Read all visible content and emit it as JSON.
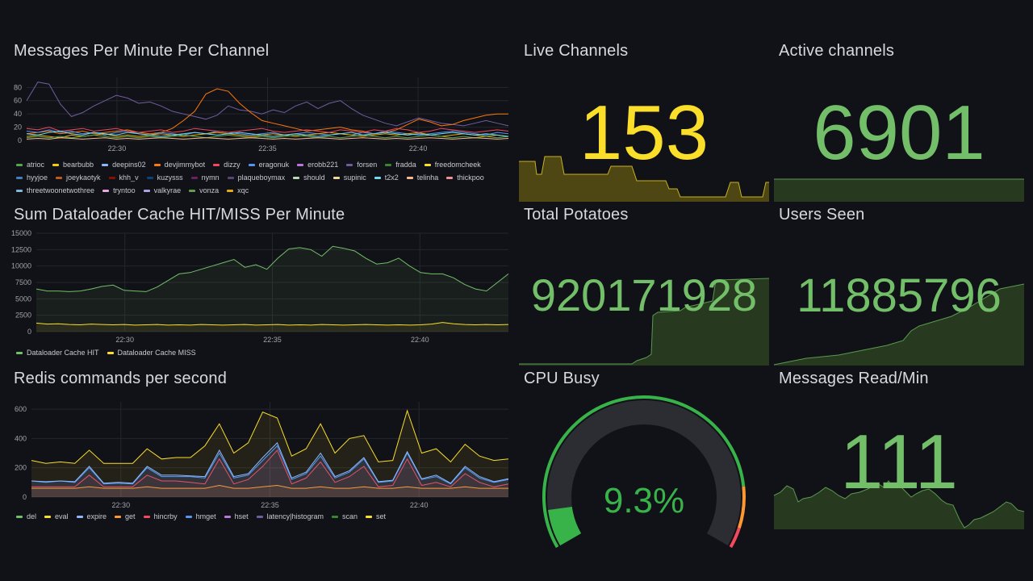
{
  "panels": {
    "messages": {
      "title": "Messages Per Minute Per Channel",
      "legend": [
        {
          "name": "atrioc",
          "color": "#56a64b"
        },
        {
          "name": "bearbubb",
          "color": "#f2cc0c"
        },
        {
          "name": "deepins02",
          "color": "#8ab8ff"
        },
        {
          "name": "devjimmybot",
          "color": "#ff780a"
        },
        {
          "name": "dizzy",
          "color": "#f2495c"
        },
        {
          "name": "eragonuk",
          "color": "#5794f2"
        },
        {
          "name": "erobb221",
          "color": "#b877d9"
        },
        {
          "name": "forsen",
          "color": "#705da0"
        },
        {
          "name": "fradda",
          "color": "#37872d"
        },
        {
          "name": "freedomcheek",
          "color": "#fade2a"
        },
        {
          "name": "hyyjoe",
          "color": "#447ebc"
        },
        {
          "name": "joeykaotyk",
          "color": "#c15c17"
        },
        {
          "name": "khh_v",
          "color": "#890f02"
        },
        {
          "name": "kuzysss",
          "color": "#0a437c"
        },
        {
          "name": "nymn",
          "color": "#6d1f62"
        },
        {
          "name": "plaqueboymax",
          "color": "#584477"
        },
        {
          "name": "should",
          "color": "#b7dbab"
        },
        {
          "name": "supinic",
          "color": "#f4d598"
        },
        {
          "name": "t2x2",
          "color": "#70dbed"
        },
        {
          "name": "telinha",
          "color": "#f9ba8f"
        },
        {
          "name": "thickpoo",
          "color": "#f29191"
        },
        {
          "name": "threetwoonetwothree",
          "color": "#82b5d8"
        },
        {
          "name": "tryntoo",
          "color": "#e5a8e2"
        },
        {
          "name": "valkyrae",
          "color": "#aea2e0"
        },
        {
          "name": "vonza",
          "color": "#629e51"
        },
        {
          "name": "xqc",
          "color": "#e5ac0e"
        }
      ]
    },
    "cache": {
      "title": "Sum Dataloader Cache HIT/MISS Per Minute",
      "legend": [
        {
          "name": "Dataloader Cache HIT",
          "color": "#73bf69"
        },
        {
          "name": "Dataloader Cache MISS",
          "color": "#fade2a"
        }
      ]
    },
    "redis": {
      "title": "Redis commands per second",
      "legend": [
        {
          "name": "del",
          "color": "#73bf69"
        },
        {
          "name": "eval",
          "color": "#fade2a"
        },
        {
          "name": "expire",
          "color": "#8ab8ff"
        },
        {
          "name": "get",
          "color": "#ff9830"
        },
        {
          "name": "hincrby",
          "color": "#f2495c"
        },
        {
          "name": "hmget",
          "color": "#5794f2"
        },
        {
          "name": "hset",
          "color": "#b877d9"
        },
        {
          "name": "latency|histogram",
          "color": "#705da0"
        },
        {
          "name": "scan",
          "color": "#37872d"
        },
        {
          "name": "set",
          "color": "#fade2a"
        }
      ]
    },
    "live_channels": {
      "title": "Live Channels",
      "value": "153",
      "color": "#fade2a",
      "spark_fill": "#4f4713",
      "spark_line": "#c9b21e"
    },
    "active_channels": {
      "title": "Active channels",
      "value": "6901",
      "color": "#73bf69",
      "spark_fill": "#27391f",
      "spark_line": "#5a9a4f"
    },
    "total_potatoes": {
      "title": "Total Potatoes",
      "value": "920171928",
      "color": "#73bf69",
      "spark_fill": "#27391f",
      "spark_line": "#5a9a4f"
    },
    "users_seen": {
      "title": "Users Seen",
      "value": "11885796",
      "color": "#73bf69",
      "spark_fill": "#27391f",
      "spark_line": "#5a9a4f"
    },
    "cpu_busy": {
      "title": "CPU Busy",
      "value": "9.3%",
      "percent": 9.3,
      "color": "#37b34a",
      "track": "#2b2d33"
    },
    "messages_read": {
      "title": "Messages Read/Min",
      "value": "111",
      "color": "#73bf69",
      "spark_fill": "#27391f",
      "spark_line": "#5a9a4f"
    }
  },
  "chart_data": [
    {
      "type": "line",
      "title": "Messages Per Minute Per Channel",
      "xlim": [
        "22:27",
        "22:43"
      ],
      "xticks": [
        "22:30",
        "22:35",
        "22:40"
      ],
      "ylim": [
        0,
        95
      ],
      "yticks": [
        0,
        20,
        40,
        60,
        80
      ],
      "series": [
        {
          "name": "forsen",
          "color": "#705da0",
          "values": [
            60,
            88,
            85,
            55,
            36,
            42,
            52,
            60,
            68,
            64,
            56,
            58,
            52,
            44,
            40,
            36,
            32,
            38,
            52,
            46,
            44,
            40,
            46,
            42,
            52,
            58,
            48,
            56,
            60,
            48,
            38,
            32,
            26,
            22,
            28,
            34,
            30,
            26,
            24,
            22,
            26,
            30,
            26,
            22
          ]
        },
        {
          "name": "devjimmybot",
          "color": "#ff780a",
          "values": [
            10,
            12,
            14,
            10,
            12,
            14,
            10,
            12,
            14,
            16,
            12,
            10,
            12,
            18,
            30,
            44,
            70,
            78,
            74,
            56,
            42,
            30,
            26,
            22,
            18,
            14,
            16,
            18,
            20,
            16,
            14,
            10,
            12,
            16,
            24,
            32,
            28,
            22,
            24,
            30,
            34,
            38,
            40,
            40
          ]
        },
        {
          "name": "eragonuk",
          "color": "#5794f2",
          "values": [
            14,
            12,
            16,
            12,
            14,
            10,
            12,
            8,
            12,
            14,
            10,
            8,
            12,
            10,
            8,
            12,
            10,
            14,
            12,
            10,
            8,
            10,
            12,
            8,
            10,
            12,
            10,
            8,
            10,
            8,
            12,
            10,
            14,
            12,
            10,
            8,
            10,
            12,
            14,
            12,
            10,
            8,
            12,
            10
          ]
        },
        {
          "name": "xqc",
          "color": "#e5ac0e",
          "values": [
            6,
            8,
            6,
            4,
            8,
            6,
            8,
            10,
            6,
            8,
            6,
            8,
            10,
            8,
            6,
            8,
            10,
            12,
            10,
            8,
            6,
            8,
            10,
            8,
            6,
            8,
            10,
            12,
            10,
            8,
            6,
            8,
            10,
            8,
            10,
            12,
            8,
            6,
            8,
            10,
            8,
            6,
            8,
            6
          ]
        },
        {
          "name": "atrioc",
          "color": "#56a64b",
          "values": [
            4,
            6,
            4,
            6,
            4,
            6,
            8,
            6,
            4,
            6,
            4,
            6,
            4,
            6,
            8,
            6,
            4,
            6,
            8,
            6,
            4,
            6,
            4,
            6,
            8,
            6,
            4,
            6,
            4,
            6,
            8,
            6,
            4,
            6,
            4,
            6,
            8,
            6,
            4,
            6,
            4,
            6,
            4,
            6
          ]
        },
        {
          "name": "dizzy",
          "color": "#f2495c",
          "values": [
            18,
            16,
            20,
            14,
            16,
            18,
            14,
            16,
            18,
            14,
            12,
            14,
            16,
            12,
            14,
            18,
            16,
            14,
            12,
            14,
            16,
            18,
            14,
            12,
            14,
            16,
            14,
            12,
            16,
            14,
            12,
            16,
            14,
            18,
            16,
            12,
            14,
            18,
            16,
            14,
            12,
            14,
            16,
            14
          ]
        },
        {
          "name": "t2x2",
          "color": "#70dbed",
          "values": [
            10,
            8,
            12,
            14,
            10,
            8,
            12,
            10,
            8,
            12,
            10,
            8,
            6,
            8,
            10,
            12,
            10,
            8,
            10,
            12,
            10,
            8,
            6,
            8,
            10,
            8,
            6,
            8,
            10,
            12,
            8,
            10,
            12,
            10,
            8,
            10,
            8,
            10,
            12,
            10,
            8,
            10,
            8,
            6
          ]
        },
        {
          "name": "telinha",
          "color": "#f9ba8f",
          "values": [
            2,
            3,
            2,
            4,
            3,
            2,
            3,
            4,
            2,
            3,
            2,
            3,
            4,
            3,
            2,
            3,
            4,
            3,
            2,
            3,
            4,
            3,
            2,
            3,
            2,
            3,
            4,
            3,
            2,
            3,
            4,
            3,
            2,
            3,
            2,
            3,
            4,
            3,
            2,
            3,
            4,
            3,
            2,
            3
          ]
        }
      ]
    },
    {
      "type": "area",
      "title": "Sum Dataloader Cache HIT/MISS Per Minute",
      "xlim": [
        "22:27",
        "22:43"
      ],
      "xticks": [
        "22:30",
        "22:35",
        "22:40"
      ],
      "ylim": [
        0,
        15000
      ],
      "yticks": [
        0,
        2500,
        5000,
        7500,
        10000,
        12500,
        15000
      ],
      "series": [
        {
          "name": "Dataloader Cache HIT",
          "color": "#73bf69",
          "values": [
            6500,
            6200,
            6200,
            6100,
            6200,
            6500,
            6900,
            7100,
            6300,
            6200,
            6100,
            6800,
            7800,
            8800,
            9000,
            9500,
            10000,
            10500,
            11000,
            9800,
            10200,
            9500,
            11200,
            12600,
            12800,
            12500,
            11500,
            13000,
            12700,
            12300,
            11200,
            10300,
            10500,
            11200,
            10000,
            9000,
            8800,
            8800,
            8200,
            7200,
            6500,
            6200,
            7500,
            8800
          ]
        },
        {
          "name": "Dataloader Cache MISS",
          "color": "#fade2a",
          "values": [
            1300,
            1150,
            1200,
            1100,
            1050,
            1150,
            1100,
            1050,
            1100,
            1000,
            1050,
            1100,
            1000,
            1050,
            1000,
            1100,
            1050,
            1000,
            1050,
            1100,
            1000,
            1050,
            1100,
            1000,
            1050,
            1000,
            1100,
            1050,
            1000,
            1050,
            1100,
            1050,
            1000,
            1050,
            1000,
            1050,
            1150,
            1400,
            1200,
            1100,
            1050,
            1100,
            1050,
            1100
          ]
        }
      ]
    },
    {
      "type": "area",
      "title": "Redis commands per second",
      "xlim": [
        "22:27",
        "22:43"
      ],
      "xticks": [
        "22:30",
        "22:35",
        "22:40"
      ],
      "ylim": [
        0,
        650
      ],
      "yticks": [
        0,
        200,
        400,
        600
      ],
      "series": [
        {
          "name": "eval",
          "color": "#fade2a",
          "values": [
            250,
            230,
            240,
            230,
            320,
            230,
            230,
            230,
            330,
            260,
            270,
            270,
            350,
            500,
            300,
            370,
            580,
            540,
            280,
            330,
            500,
            300,
            400,
            420,
            240,
            250,
            590,
            300,
            330,
            240,
            360,
            280,
            250,
            260
          ]
        },
        {
          "name": "hmget",
          "color": "#5794f2",
          "values": [
            110,
            100,
            110,
            100,
            200,
            90,
            95,
            90,
            200,
            140,
            140,
            140,
            130,
            300,
            130,
            150,
            250,
            350,
            120,
            160,
            280,
            130,
            170,
            260,
            100,
            110,
            300,
            120,
            140,
            90,
            200,
            130,
            100,
            120
          ]
        },
        {
          "name": "hincrby",
          "color": "#f2495c",
          "values": [
            70,
            70,
            70,
            70,
            150,
            70,
            70,
            70,
            150,
            110,
            110,
            100,
            90,
            260,
            90,
            120,
            210,
            320,
            90,
            130,
            240,
            100,
            140,
            210,
            70,
            80,
            260,
            80,
            100,
            70,
            160,
            100,
            70,
            90
          ]
        },
        {
          "name": "get",
          "color": "#ff9830",
          "values": [
            60,
            60,
            60,
            60,
            70,
            60,
            60,
            60,
            70,
            60,
            60,
            60,
            60,
            80,
            60,
            60,
            70,
            80,
            60,
            60,
            70,
            60,
            60,
            70,
            60,
            60,
            70,
            60,
            60,
            60,
            70,
            60,
            60,
            60
          ]
        },
        {
          "name": "expire",
          "color": "#8ab8ff",
          "values": [
            110,
            105,
            110,
            105,
            210,
            95,
            100,
            95,
            210,
            150,
            150,
            145,
            140,
            320,
            140,
            160,
            270,
            370,
            130,
            170,
            300,
            140,
            180,
            270,
            105,
            115,
            310,
            125,
            150,
            95,
            210,
            140,
            105,
            125
          ]
        }
      ]
    }
  ]
}
